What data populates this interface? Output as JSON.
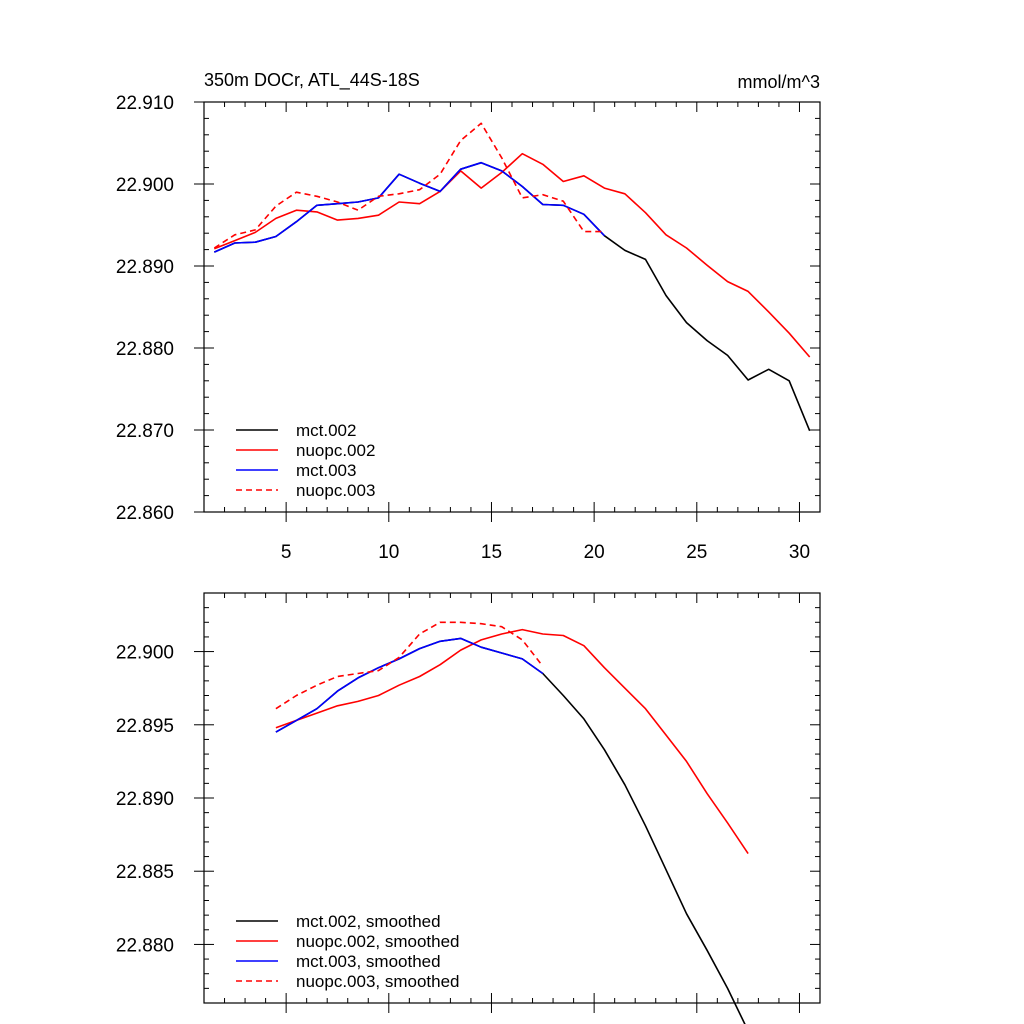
{
  "chart_data": [
    {
      "type": "line",
      "title": "350m DOCr, ATL_44S-18S",
      "units": "mmol/m^3",
      "xlabel": "",
      "ylabel": "",
      "xlim": [
        1,
        31
      ],
      "ylim": [
        22.86,
        22.91
      ],
      "xticks": [
        5,
        10,
        15,
        20,
        25,
        30
      ],
      "xtick_labels": [
        "5",
        "10",
        "15",
        "20",
        "25",
        "30"
      ],
      "yticks": [
        22.86,
        22.87,
        22.88,
        22.89,
        22.9,
        22.91
      ],
      "ytick_labels": [
        "22.860",
        "22.870",
        "22.880",
        "22.890",
        "22.900",
        "22.910"
      ],
      "grid": false,
      "legend_position": "bottom-left",
      "series": [
        {
          "name": "mct.002",
          "color": "#000000",
          "dash": "solid",
          "x": [
            1.5,
            2.5,
            3.5,
            4.5,
            5.5,
            6.5,
            7.5,
            8.5,
            9.5,
            10.5,
            11.5,
            12.5,
            13.5,
            14.5,
            15.5,
            16.5,
            17.5,
            18.5,
            19.5,
            20.5,
            21.5,
            22.5,
            23.5,
            24.5,
            25.5,
            26.5,
            27.5,
            28.5,
            29.5,
            30.5
          ],
          "values": [
            22.8917,
            22.8928,
            22.8929,
            22.8936,
            22.8954,
            22.8974,
            22.8976,
            22.8978,
            22.8983,
            22.9012,
            22.9001,
            22.8991,
            22.9018,
            22.9026,
            22.9016,
            22.8997,
            22.8975,
            22.8974,
            22.8963,
            22.8937,
            22.8919,
            22.8908,
            22.8864,
            22.8831,
            22.8809,
            22.8791,
            22.8761,
            22.8774,
            22.876,
            22.8699
          ]
        },
        {
          "name": "nuopc.002",
          "color": "#ff0000",
          "dash": "solid",
          "x": [
            1.5,
            2.5,
            3.5,
            4.5,
            5.5,
            6.5,
            7.5,
            8.5,
            9.5,
            10.5,
            11.5,
            12.5,
            13.5,
            14.5,
            15.5,
            16.5,
            17.5,
            18.5,
            19.5,
            20.5,
            21.5,
            22.5,
            23.5,
            24.5,
            25.5,
            26.5,
            27.5,
            28.5,
            29.5,
            30.5
          ],
          "values": [
            22.8921,
            22.8931,
            22.8941,
            22.8958,
            22.8968,
            22.8966,
            22.8956,
            22.8958,
            22.8962,
            22.8978,
            22.8976,
            22.8991,
            22.9016,
            22.8995,
            22.9014,
            22.9037,
            22.9024,
            22.9003,
            22.901,
            22.8995,
            22.8988,
            22.8965,
            22.8938,
            22.8922,
            22.8901,
            22.8881,
            22.8869,
            22.8844,
            22.8818,
            22.8789
          ]
        },
        {
          "name": "mct.003",
          "color": "#0000ff",
          "dash": "solid",
          "x": [
            1.5,
            2.5,
            3.5,
            4.5,
            5.5,
            6.5,
            7.5,
            8.5,
            9.5,
            10.5,
            11.5,
            12.5,
            13.5,
            14.5,
            15.5,
            16.5,
            17.5,
            18.5,
            19.5,
            20.5
          ],
          "values": [
            22.8917,
            22.8928,
            22.8929,
            22.8936,
            22.8954,
            22.8974,
            22.8976,
            22.8978,
            22.8983,
            22.9012,
            22.9001,
            22.8991,
            22.9018,
            22.9026,
            22.9016,
            22.8997,
            22.8975,
            22.8974,
            22.8963,
            22.8937
          ]
        },
        {
          "name": "nuopc.003",
          "color": "#ff0000",
          "dash": "dashed",
          "x": [
            1.5,
            2.5,
            3.5,
            4.5,
            5.5,
            6.5,
            7.5,
            8.5,
            9.5,
            10.5,
            11.5,
            12.5,
            13.5,
            14.5,
            15.5,
            16.5,
            17.5,
            18.5,
            19.5,
            20.5
          ],
          "values": [
            22.8922,
            22.8938,
            22.8944,
            22.8973,
            22.899,
            22.8985,
            22.8978,
            22.8968,
            22.8985,
            22.8988,
            22.8993,
            22.9012,
            22.9053,
            22.9074,
            22.9032,
            22.8983,
            22.8987,
            22.8979,
            22.8942,
            22.8942
          ]
        }
      ]
    },
    {
      "type": "line",
      "title": "",
      "xlabel": "",
      "ylabel": "",
      "xlim": [
        1,
        31
      ],
      "ylim": [
        22.876,
        22.904
      ],
      "xticks": [
        5,
        10,
        15,
        20,
        25,
        30
      ],
      "xtick_labels": [],
      "yticks": [
        22.88,
        22.885,
        22.89,
        22.895,
        22.9
      ],
      "ytick_labels": [
        "22.880",
        "22.885",
        "22.890",
        "22.895",
        "22.900"
      ],
      "grid": false,
      "legend_position": "bottom-left",
      "series": [
        {
          "name": "mct.002, smoothed",
          "color": "#000000",
          "dash": "solid",
          "x": [
            4.5,
            5.5,
            6.5,
            7.5,
            8.5,
            9.5,
            10.5,
            11.5,
            12.5,
            13.5,
            14.5,
            15.5,
            16.5,
            17.5,
            18.5,
            19.5,
            20.5,
            21.5,
            22.5,
            23.5,
            24.5,
            25.5,
            26.5,
            27.5
          ],
          "values": [
            22.8945,
            22.8953,
            22.8961,
            22.8973,
            22.8982,
            22.8989,
            22.8995,
            22.9002,
            22.9007,
            22.9009,
            22.9003,
            22.8999,
            22.8995,
            22.8985,
            22.897,
            22.8954,
            22.8933,
            22.8909,
            22.8881,
            22.8851,
            22.8821,
            22.8796,
            22.877,
            22.8741
          ]
        },
        {
          "name": "nuopc.002, smoothed",
          "color": "#ff0000",
          "dash": "solid",
          "x": [
            4.5,
            5.5,
            6.5,
            7.5,
            8.5,
            9.5,
            10.5,
            11.5,
            12.5,
            13.5,
            14.5,
            15.5,
            16.5,
            17.5,
            18.5,
            19.5,
            20.5,
            21.5,
            22.5,
            23.5,
            24.5,
            25.5,
            26.5,
            27.5
          ],
          "values": [
            22.8948,
            22.8953,
            22.8958,
            22.8963,
            22.8966,
            22.897,
            22.8977,
            22.8983,
            22.8991,
            22.9001,
            22.9008,
            22.9012,
            22.9015,
            22.9012,
            22.9011,
            22.9004,
            22.8989,
            22.8975,
            22.8961,
            22.8943,
            22.8925,
            22.8903,
            22.8883,
            22.8862
          ]
        },
        {
          "name": "mct.003, smoothed",
          "color": "#0000ff",
          "dash": "solid",
          "x": [
            4.5,
            5.5,
            6.5,
            7.5,
            8.5,
            9.5,
            10.5,
            11.5,
            12.5,
            13.5,
            14.5,
            15.5,
            16.5,
            17.5
          ],
          "values": [
            22.8945,
            22.8953,
            22.8961,
            22.8973,
            22.8982,
            22.8989,
            22.8995,
            22.9002,
            22.9007,
            22.9009,
            22.9003,
            22.8999,
            22.8995,
            22.8985
          ]
        },
        {
          "name": "nuopc.003, smoothed",
          "color": "#ff0000",
          "dash": "dashed",
          "x": [
            4.5,
            5.5,
            6.5,
            7.5,
            8.5,
            9.5,
            10.5,
            11.5,
            12.5,
            13.5,
            14.5,
            15.5,
            16.5,
            17.5
          ],
          "values": [
            22.8961,
            22.897,
            22.8977,
            22.8983,
            22.8985,
            22.8987,
            22.8996,
            22.9012,
            22.902,
            22.902,
            22.9019,
            22.9017,
            22.9008,
            22.899
          ]
        }
      ]
    }
  ]
}
